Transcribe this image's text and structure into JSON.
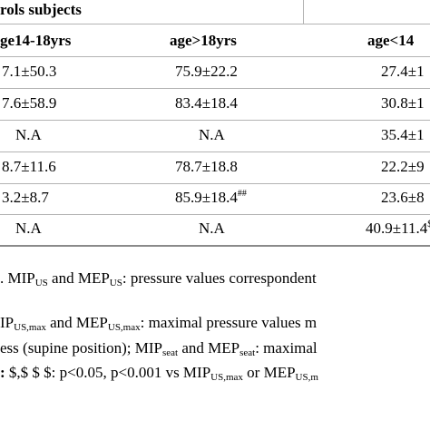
{
  "table": {
    "group_header": "rols subjects",
    "columns": [
      "ge14-18yrs",
      "age>18yrs",
      "age<14"
    ],
    "rows": [
      {
        "c1": "7.1±50.3",
        "c2": "75.9±22.2",
        "c3": "27.4±1",
        "c2_sup": "",
        "c3_sup": ""
      },
      {
        "c1": "7.6±58.9",
        "c2": "83.4±18.4",
        "c3": "30.8±1",
        "c2_sup": "",
        "c3_sup": ""
      },
      {
        "c1": "N.A",
        "c2": "N.A",
        "c3": "35.4±1",
        "c2_sup": "",
        "c3_sup": ""
      },
      {
        "c1": "8.7±11.6",
        "c2": "78.7±18.8",
        "c3": "22.2±9",
        "c2_sup": "",
        "c3_sup": ""
      },
      {
        "c1": "3.2±8.7",
        "c2": "85.9±18.4",
        "c3": "23.6±8",
        "c2_sup": "##",
        "c3_sup": ""
      },
      {
        "c1": "N.A",
        "c2": "N.A",
        "c3": "40.9±11.4",
        "c2_sup": "",
        "c3_sup": "$"
      }
    ]
  },
  "notes": [
    {
      "parts": [
        {
          "t": "n",
          "v": ". MIP"
        },
        {
          "t": "sub",
          "v": "US"
        },
        {
          "t": "n",
          "v": " and MEP"
        },
        {
          "t": "sub",
          "v": "US"
        },
        {
          "t": "n",
          "v": ": pressure values correspondent"
        }
      ]
    },
    {
      "parts": [
        {
          "t": "n",
          "v": "IP"
        },
        {
          "t": "sub",
          "v": "US,max"
        },
        {
          "t": "n",
          "v": " and MEP"
        },
        {
          "t": "sub",
          "v": "US,max"
        },
        {
          "t": "n",
          "v": ": maximal pressure values m"
        }
      ]
    },
    {
      "parts": [
        {
          "t": "n",
          "v": "ess (supine position); MIP"
        },
        {
          "t": "sub",
          "v": "seat"
        },
        {
          "t": "n",
          "v": " and MEP"
        },
        {
          "t": "sub",
          "v": "seat"
        },
        {
          "t": "n",
          "v": ": maximal"
        }
      ]
    },
    {
      "parts": [
        {
          "t": "b",
          "v": ":"
        },
        {
          "t": "n",
          "v": " $,$ $ $: p<0.05, p<0.001 vs MIP"
        },
        {
          "t": "sub",
          "v": "US,max"
        },
        {
          "t": "n",
          "v": " or MEP"
        },
        {
          "t": "sub",
          "v": "US,m"
        }
      ]
    }
  ]
}
